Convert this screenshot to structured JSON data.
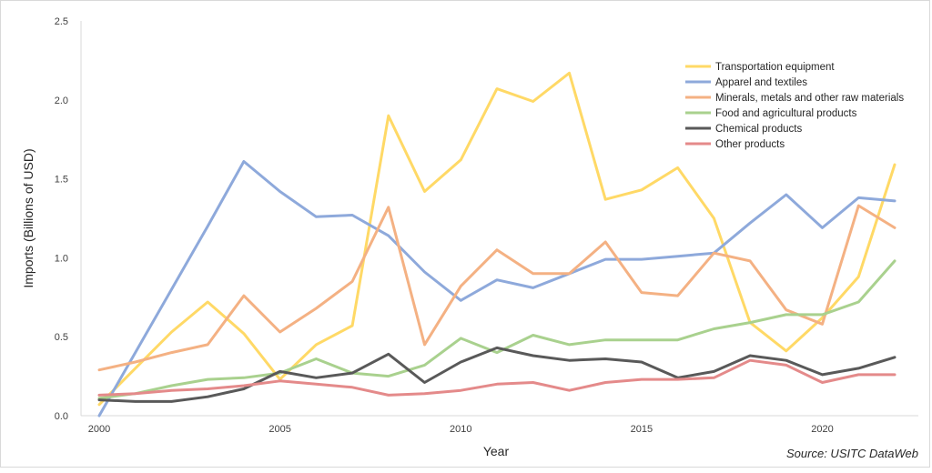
{
  "chart_data": {
    "type": "line",
    "title": "",
    "xlabel": "Year",
    "ylabel": "Imports (Billions of USD)",
    "source_note": "Source: USITC DataWeb",
    "xlim": [
      2000,
      2022
    ],
    "ylim": [
      0,
      2.5
    ],
    "x_ticks": [
      2000,
      2005,
      2010,
      2015,
      2020
    ],
    "y_ticks": [
      "0.0",
      "0.5",
      "1.0",
      "1.5",
      "2.0",
      "2.5"
    ],
    "grid": false,
    "legend_position": "top-right",
    "x": [
      2000,
      2001,
      2002,
      2003,
      2004,
      2005,
      2006,
      2007,
      2008,
      2009,
      2010,
      2011,
      2012,
      2013,
      2014,
      2015,
      2016,
      2017,
      2018,
      2019,
      2020,
      2021,
      2022
    ],
    "series": [
      {
        "name": "Transportation equipment",
        "color": "#FFD966",
        "values": [
          0.07,
          0.3,
          0.53,
          0.72,
          0.52,
          0.23,
          0.45,
          0.57,
          1.9,
          1.42,
          1.62,
          2.07,
          1.99,
          2.17,
          1.37,
          1.43,
          1.57,
          1.25,
          0.59,
          0.41,
          0.62,
          0.88,
          1.59
        ]
      },
      {
        "name": "Apparel and textiles",
        "color": "#8EA9DB",
        "values": [
          0.0,
          0.4,
          0.8,
          1.2,
          1.61,
          1.42,
          1.26,
          1.27,
          1.14,
          0.91,
          0.73,
          0.86,
          0.81,
          0.9,
          0.99,
          0.99,
          1.01,
          1.03,
          1.22,
          1.4,
          1.19,
          1.38,
          1.36
        ]
      },
      {
        "name": "Minerals, metals and other raw materials",
        "color": "#F4B183",
        "values": [
          0.29,
          0.34,
          0.4,
          0.45,
          0.76,
          0.53,
          0.68,
          0.85,
          1.32,
          0.45,
          0.82,
          1.05,
          0.9,
          0.9,
          1.1,
          0.78,
          0.76,
          1.03,
          0.98,
          0.67,
          0.58,
          1.33,
          1.19
        ]
      },
      {
        "name": "Food and agricultural products",
        "color": "#A9D18E",
        "values": [
          0.11,
          0.14,
          0.19,
          0.23,
          0.24,
          0.27,
          0.36,
          0.27,
          0.25,
          0.32,
          0.49,
          0.4,
          0.51,
          0.45,
          0.48,
          0.48,
          0.48,
          0.55,
          0.59,
          0.64,
          0.64,
          0.72,
          0.98
        ]
      },
      {
        "name": "Chemical products",
        "color": "#595959",
        "values": [
          0.1,
          0.09,
          0.09,
          0.12,
          0.17,
          0.28,
          0.24,
          0.27,
          0.39,
          0.21,
          0.34,
          0.43,
          0.38,
          0.35,
          0.36,
          0.34,
          0.24,
          0.28,
          0.38,
          0.35,
          0.26,
          0.3,
          0.37
        ]
      },
      {
        "name": "Other products",
        "color": "#E48A8A",
        "values": [
          0.13,
          0.14,
          0.16,
          0.17,
          0.19,
          0.22,
          0.2,
          0.18,
          0.13,
          0.14,
          0.16,
          0.2,
          0.21,
          0.16,
          0.21,
          0.23,
          0.23,
          0.24,
          0.35,
          0.32,
          0.21,
          0.26,
          0.26
        ]
      }
    ]
  }
}
